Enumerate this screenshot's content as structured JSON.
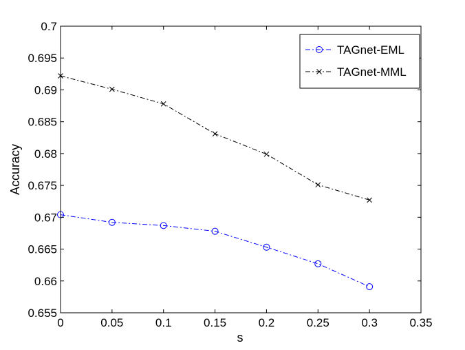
{
  "chart_data": {
    "type": "line",
    "title": "",
    "xlabel": "s",
    "ylabel": "Accuracy",
    "xlim": [
      0,
      0.35
    ],
    "ylim": [
      0.655,
      0.7
    ],
    "xticks": [
      "0",
      "0.05",
      "0.1",
      "0.15",
      "0.2",
      "0.25",
      "0.3",
      "0.35"
    ],
    "yticks": [
      "0.655",
      "0.66",
      "0.665",
      "0.67",
      "0.675",
      "0.68",
      "0.685",
      "0.69",
      "0.695",
      "0.7"
    ],
    "x": [
      0,
      0.05,
      0.1,
      0.15,
      0.2,
      0.25,
      0.3
    ],
    "grid": false,
    "legend_position": "top-right",
    "series": [
      {
        "name": "TAGnet-EML",
        "values": [
          0.6704,
          0.6692,
          0.6687,
          0.6678,
          0.6653,
          0.6627,
          0.6591
        ],
        "color": "#0000ff",
        "marker": "circle",
        "line_style": "dash-dot"
      },
      {
        "name": "TAGnet-MML",
        "values": [
          0.6922,
          0.6901,
          0.6878,
          0.6831,
          0.6799,
          0.6751,
          0.6727
        ],
        "color": "#000000",
        "marker": "x",
        "line_style": "dash-dot"
      }
    ]
  }
}
